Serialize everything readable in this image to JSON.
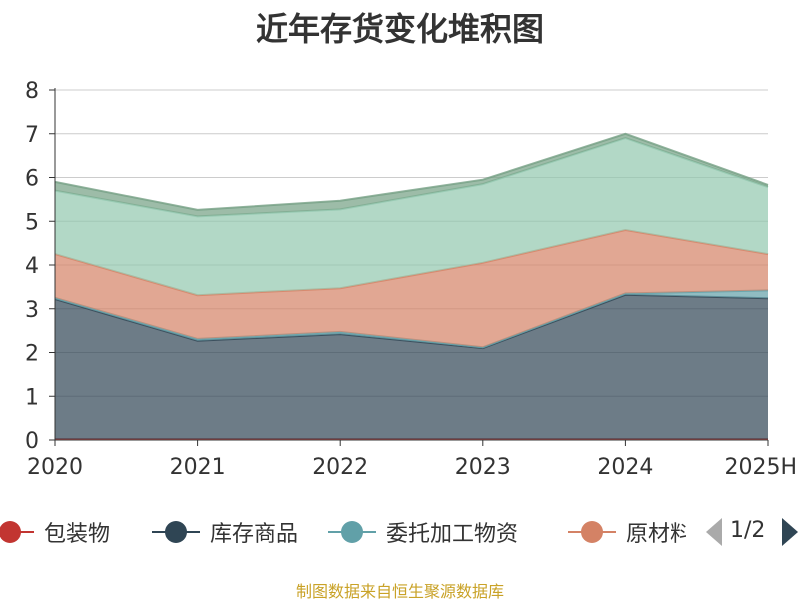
{
  "chart_data": {
    "type": "area",
    "title": "近年存货变化堆积图",
    "ylabel": "",
    "xlabel": "",
    "categories": [
      "2020",
      "2021",
      "2022",
      "2023",
      "2024",
      "2025H"
    ],
    "ylim": [
      0,
      8
    ],
    "yticks": [
      0,
      1,
      2,
      3,
      4,
      5,
      6,
      7,
      8
    ],
    "stacked": true,
    "grid": true,
    "series": [
      {
        "name": "包装物",
        "values": [
          0.02,
          0.02,
          0.02,
          0.02,
          0.02,
          0.02
        ],
        "color": "#c23531"
      },
      {
        "name": "库存商品",
        "values": [
          3.2,
          2.25,
          2.4,
          2.08,
          3.3,
          3.22
        ],
        "color": "#2f4554"
      },
      {
        "name": "委托加工物资",
        "values": [
          0.03,
          0.04,
          0.05,
          0.02,
          0.03,
          0.18
        ],
        "color": "#61a0a8"
      },
      {
        "name": "原材料",
        "values": [
          1.0,
          1.0,
          1.0,
          1.93,
          1.45,
          0.83
        ],
        "color": "#d48265"
      },
      {
        "name": "",
        "values": [
          1.45,
          1.8,
          1.8,
          1.8,
          2.1,
          1.53
        ],
        "color": "#91c7ae"
      },
      {
        "name": "",
        "values": [
          0.2,
          0.15,
          0.2,
          0.1,
          0.1,
          0.05
        ],
        "color": "#749f83"
      }
    ],
    "legend": {
      "placement": "bottom",
      "page": "1/2",
      "items": [
        "包装物",
        "库存商品",
        "委托加工物资",
        "原材料"
      ]
    },
    "source_note": "制图数据来自恒生聚源数据库"
  }
}
